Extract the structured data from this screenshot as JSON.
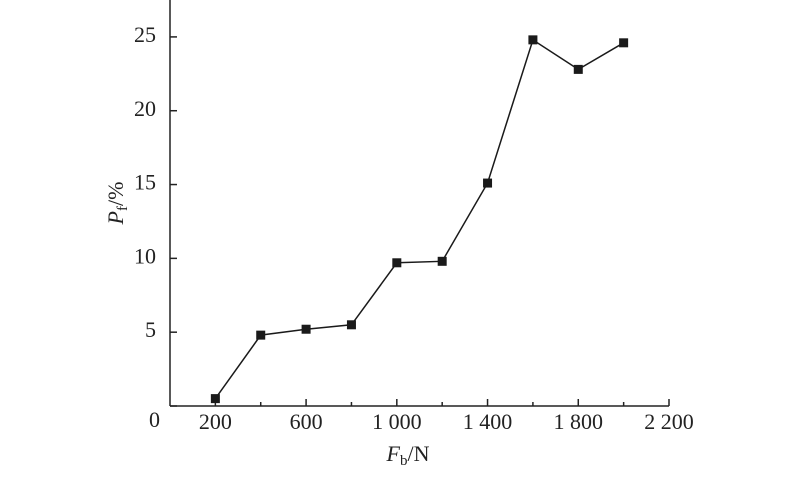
{
  "chart_data": {
    "type": "line",
    "xlabel": {
      "symbol": "F",
      "subscript": "b",
      "unit": "/N"
    },
    "ylabel": {
      "symbol": "P",
      "subscript": "f",
      "unit": "/%"
    },
    "x": [
      200,
      400,
      600,
      800,
      1000,
      1200,
      1400,
      1600,
      1800,
      2000
    ],
    "series": [
      {
        "color": "#1a1a1a",
        "values": [
          0.5,
          4.8,
          5.2,
          5.5,
          9.7,
          9.8,
          15.1,
          24.8,
          22.8,
          24.6
        ]
      }
    ],
    "xlim": [
      0,
      2200
    ],
    "xticks": [
      200,
      600,
      {
        "value": 1000,
        "label": "1 000"
      },
      {
        "value": 1400,
        "label": "1 400"
      },
      {
        "value": 1800,
        "label": "1 800"
      },
      {
        "value": 2200,
        "label": "2 200"
      }
    ],
    "xminor_ticks": [
      400,
      800,
      1200,
      1600,
      2000
    ],
    "ylim": [
      0,
      27.5
    ],
    "yticks": [
      0,
      5,
      10,
      15,
      20,
      25
    ]
  }
}
